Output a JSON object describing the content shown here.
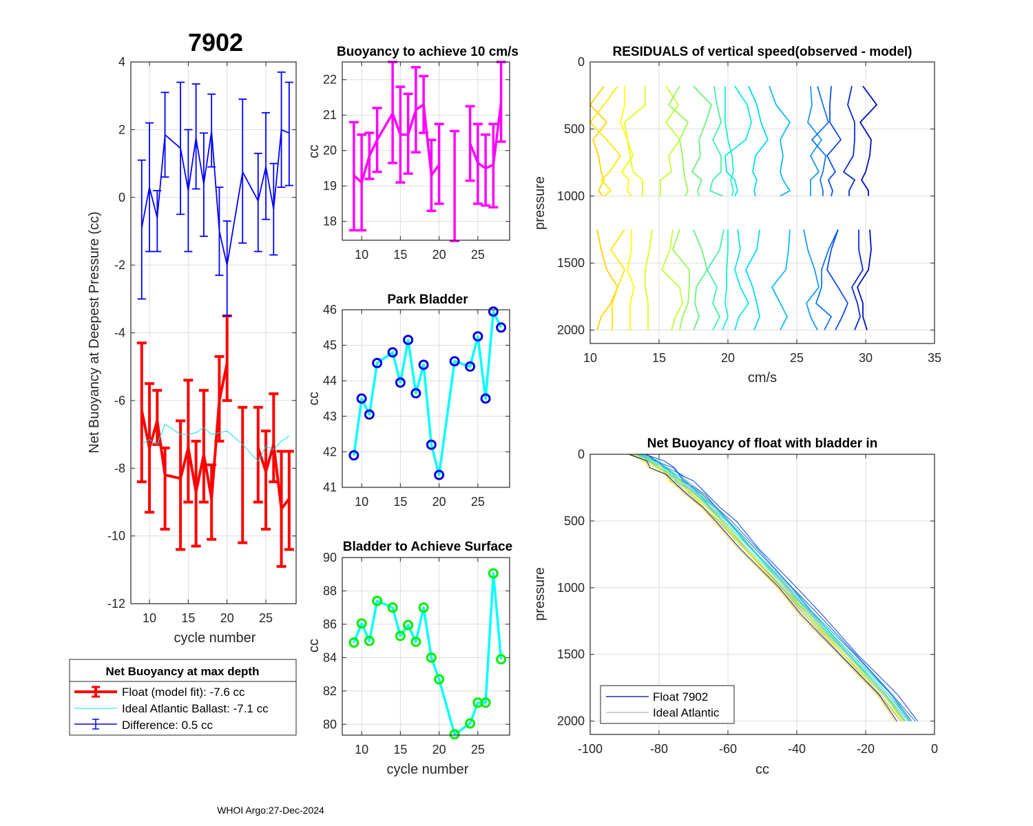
{
  "figure": {
    "float_title": "7902",
    "footer": "WHOI Argo:27-Dec-2024"
  },
  "chart_data": [
    {
      "id": "net_buoyancy_deepest",
      "type": "line",
      "title": "7902",
      "xlabel": "cycle number",
      "ylabel": "Net Buoyancy at Deepest Pressure (cc)",
      "xlim": [
        7.6,
        28.9
      ],
      "ylim": [
        -12,
        4
      ],
      "xticks": [
        10,
        15,
        20,
        25
      ],
      "yticks": [
        4,
        2,
        0,
        -2,
        -4,
        -6,
        -8,
        -10,
        -12
      ],
      "grid": true,
      "x": [
        9,
        10,
        11,
        12,
        14,
        15,
        16,
        17,
        18,
        19,
        20,
        22,
        24,
        25,
        26,
        27,
        28
      ],
      "series": [
        {
          "name": "Float (model fit)",
          "color": "#ff0000",
          "values": [
            -6.3,
            -7.4,
            -6.6,
            -8.2,
            -8.3,
            -7.4,
            -8.7,
            -7.6,
            -8.9,
            -6.0,
            -4.9,
            null,
            -7.4,
            -8.1,
            -7.3,
            -9.2,
            -8.9
          ],
          "err_low": [
            -8.4,
            -9.3,
            -7.3,
            -9.8,
            -10.4,
            -9.0,
            -10.3,
            -9.0,
            -10.1,
            -7.2,
            -6.0,
            -10.2,
            -9.0,
            -9.8,
            -8.4,
            -10.9,
            -10.4
          ],
          "err_high": [
            -4.3,
            -5.5,
            -5.7,
            -7.4,
            -6.6,
            -5.4,
            -7.2,
            -5.7,
            -7.9,
            -4.7,
            -3.5,
            -6.2,
            -6.2,
            -6.9,
            -5.8,
            -7.5,
            -7.5
          ]
        },
        {
          "name": "Ideal Atlantic Ballast",
          "color": "#00e5e5",
          "values": [
            -7.3,
            -7.15,
            -7.3,
            -6.7,
            -7.0,
            -7.0,
            -6.95,
            -6.8,
            -7.0,
            -6.95,
            -6.9,
            -7.3,
            -7.8,
            -7.35,
            -7.45,
            -7.2,
            -7.05
          ]
        },
        {
          "name": "Difference",
          "color": "#0000ff",
          "values": [
            -0.9,
            0.3,
            -0.6,
            1.85,
            1.45,
            0.2,
            1.75,
            0.4,
            1.95,
            -1.0,
            -2.0,
            0.75,
            -0.1,
            0.9,
            -0.35,
            2.0,
            1.9
          ],
          "err_low": [
            -3.0,
            -1.6,
            -1.6,
            0.6,
            -0.5,
            -1.6,
            0.25,
            -1.15,
            0.9,
            -2.3,
            -3.5,
            -1.35,
            -1.6,
            -0.65,
            -1.7,
            0.3,
            0.35
          ],
          "err_high": [
            1.1,
            2.2,
            0.2,
            3.1,
            3.4,
            2.0,
            3.35,
            1.9,
            3.05,
            0.3,
            -0.7,
            2.9,
            1.3,
            2.5,
            1.0,
            3.7,
            3.4
          ]
        }
      ],
      "legend": {
        "title": "Net Buoyancy at max depth",
        "placement": "below",
        "entries": [
          {
            "label": "Float (model fit):  -7.6 cc",
            "color": "#ff0000",
            "style": "errorbar-thick"
          },
          {
            "label": "Ideal Atlantic Ballast:  -7.1 cc",
            "color": "#00e5e5",
            "style": "line"
          },
          {
            "label": "Difference:   0.5 cc",
            "color": "#0000ff",
            "style": "errorbar"
          }
        ]
      }
    },
    {
      "id": "buoyancy_10cms",
      "type": "line",
      "title": "Buoyancy to achieve 10 cm/s",
      "xlabel": "",
      "ylabel": "cc",
      "xlim": [
        7.5,
        29.1
      ],
      "ylim": [
        17.47,
        22.5
      ],
      "xticks": [
        10,
        15,
        20,
        25
      ],
      "yticks": [
        18,
        19,
        20,
        21,
        22
      ],
      "grid": true,
      "x": [
        9,
        10,
        11,
        12,
        14,
        15,
        16,
        17,
        18,
        19,
        20,
        22,
        24,
        25,
        26,
        27,
        28
      ],
      "series": [
        {
          "name": "buoyancy",
          "color": "#ff00ff",
          "values": [
            19.3,
            19.1,
            19.85,
            20.3,
            21.05,
            20.45,
            20.45,
            21.15,
            21.3,
            19.3,
            19.6,
            null,
            20.2,
            19.65,
            19.5,
            19.6,
            21.35
          ],
          "err_low": [
            17.75,
            17.75,
            19.2,
            19.4,
            19.65,
            19.1,
            19.35,
            19.95,
            20.5,
            18.3,
            18.5,
            17.45,
            19.15,
            18.5,
            18.45,
            18.4,
            20.25
          ],
          "err_high": [
            20.8,
            20.45,
            20.5,
            21.2,
            22.5,
            21.8,
            21.6,
            22.35,
            22.1,
            20.3,
            20.75,
            20.55,
            21.25,
            20.75,
            20.45,
            20.75,
            22.5
          ]
        }
      ]
    },
    {
      "id": "park_bladder",
      "type": "line",
      "title": "Park Bladder",
      "xlabel": "",
      "ylabel": "cc",
      "xlim": [
        7.5,
        29.1
      ],
      "ylim": [
        41,
        46
      ],
      "xticks": [
        10,
        15,
        20,
        25
      ],
      "yticks": [
        41,
        42,
        43,
        44,
        45,
        46
      ],
      "grid": true,
      "x": [
        9,
        10,
        11,
        12,
        14,
        15,
        16,
        17,
        18,
        19,
        20,
        22,
        24,
        25,
        26,
        27,
        28
      ],
      "series": [
        {
          "name": "park bladder",
          "line_color": "#00ffff",
          "marker_color": "#0000e0",
          "values": [
            41.9,
            43.5,
            43.05,
            44.5,
            44.8,
            43.95,
            45.15,
            43.65,
            44.45,
            42.2,
            41.35,
            44.55,
            44.4,
            45.25,
            43.5,
            45.95,
            45.5
          ]
        }
      ]
    },
    {
      "id": "bladder_surface",
      "type": "line",
      "title": "Bladder to Achieve Surface",
      "xlabel": "cycle number",
      "ylabel": "cc",
      "xlim": [
        7.5,
        29.1
      ],
      "ylim": [
        79.35,
        90
      ],
      "xticks": [
        10,
        15,
        20,
        25
      ],
      "yticks": [
        80,
        82,
        84,
        86,
        88,
        90
      ],
      "grid": true,
      "x": [
        9,
        10,
        11,
        12,
        14,
        15,
        16,
        17,
        18,
        19,
        20,
        22,
        24,
        25,
        26,
        27,
        28
      ],
      "series": [
        {
          "name": "surface bladder",
          "line_color": "#00ffff",
          "marker_color": "#00ee00",
          "values": [
            84.9,
            86.05,
            85.0,
            87.4,
            87.0,
            85.3,
            85.95,
            84.95,
            87.0,
            84.0,
            82.7,
            79.4,
            80.05,
            81.3,
            81.3,
            89.05,
            83.9
          ]
        }
      ]
    },
    {
      "id": "residuals",
      "type": "line",
      "title": "RESIDUALS of vertical speed(observed - model)",
      "xlabel": "cm/s",
      "ylabel": "pressure",
      "xlim": [
        10,
        35
      ],
      "ylim": [
        0,
        2100
      ],
      "y_reversed": true,
      "xticks": [
        10,
        15,
        20,
        25,
        30,
        35
      ],
      "yticks": [
        0,
        500,
        1000,
        1500,
        2000
      ],
      "grid": true,
      "colormap": "parula-reversed",
      "profiles_upper": {
        "pressure": [
          180,
          320,
          450,
          580,
          700,
          820,
          880,
          960,
          1000
        ],
        "offsets": [
          10,
          11,
          12.5,
          14,
          15.5,
          16.5,
          17.5,
          19,
          19.8,
          20.5,
          21.5,
          23,
          26,
          26.5,
          27.5,
          29,
          29.8
        ],
        "shapes": [
          [
            1,
            0,
            1.2,
            0.2,
            0.6,
            0.8,
            1,
            0.6,
            0.9
          ],
          [
            1,
            0,
            -1,
            0.2,
            1.2,
            0.4,
            -0.2,
            0.5,
            0
          ],
          [
            0,
            0,
            -0.3,
            0.2,
            0.6,
            -0.2,
            0.3,
            0.2,
            0.5
          ],
          [
            0,
            0,
            -1.5,
            -1.3,
            -1.1,
            -0.9,
            -0.2,
            -0.2,
            -0.2
          ],
          [
            0,
            0.9,
            0,
            1,
            0.2,
            0.4,
            -0.4,
            -0.4,
            -0.4
          ],
          [
            0,
            -0.8,
            0.6,
            0,
            0.2,
            0.3,
            0.4,
            0.6,
            0.4
          ],
          [
            0,
            1.3,
            0.9,
            0.4,
            0.5,
            -0.1,
            0.6,
            0.3,
            0.4
          ],
          [
            0,
            0.2,
            0.5,
            -0.1,
            0.5,
            0.5,
            -0.1,
            -0.3,
            0.6
          ],
          [
            0,
            0,
            0,
            0.2,
            0.5,
            0.6,
            0.4,
            0.6,
            0.5
          ],
          [
            0,
            0.9,
            1.2,
            0.8,
            -0.7,
            -0.6,
            0,
            0.2,
            0
          ],
          [
            0,
            0.6,
            0.9,
            1.4,
            0.5,
            0.3,
            0.6,
            0.4,
            0.5
          ],
          [
            0,
            0.5,
            1.5,
            0.8,
            1,
            0.8,
            1,
            1.5,
            0.8
          ],
          [
            0,
            0.1,
            -0.2,
            0.8,
            0,
            0.6,
            0,
            0,
            0
          ],
          [
            0,
            0.4,
            0.8,
            -0.4,
            0.6,
            0.4,
            0.2,
            0.4,
            0.4
          ],
          [
            0,
            -0.1,
            -0.1,
            0.7,
            -0.3,
            0.3,
            -0.2,
            0.1,
            0
          ],
          [
            0,
            -0.3,
            0.2,
            0.2,
            0.1,
            -0.6,
            0.2,
            -0.2,
            -0.2
          ],
          [
            0,
            1,
            -0.2,
            0.6,
            0.5,
            0.2,
            -0.1,
            0.4,
            0.4
          ]
        ]
      },
      "profiles_lower": {
        "pressure": [
          1250,
          1400,
          1550,
          1680,
          1800,
          1900,
          2000
        ],
        "offsets": [
          10,
          11,
          12.5,
          14,
          15.5,
          16.5,
          17.5,
          19,
          19.8,
          20.5,
          21.5,
          23,
          26,
          26.5,
          27.5,
          29,
          29.8
        ],
        "shapes": [
          [
            0.5,
            0.8,
            1.2,
            2,
            1.5,
            0.8,
            0.5
          ],
          [
            1.5,
            0.5,
            1.5,
            1,
            0.6,
            0.6,
            0.6
          ],
          [
            0.5,
            0.5,
            0.2,
            0.7,
            0.4,
            0.4,
            0.4
          ],
          [
            0.5,
            0.3,
            0,
            0,
            0.2,
            0.2,
            0.2
          ],
          [
            0.5,
            0.3,
            -0.3,
            1,
            1.2,
            0.7,
            0.4
          ],
          [
            0,
            -0.5,
            0.7,
            0.7,
            0.6,
            0.2,
            0
          ],
          [
            0,
            0.6,
            1,
            0.2,
            0.1,
            0.4,
            0
          ],
          [
            0.7,
            0.4,
            -0.5,
            0.2,
            -0.1,
            0.4,
            -0.1
          ],
          [
            0.2,
            0.2,
            0.1,
            0.1,
            0,
            0.2,
            -0.2
          ],
          [
            0.2,
            0.4,
            0,
            0.4,
            1,
            0.3,
            0
          ],
          [
            0.8,
            0.6,
            -0.2,
            0.3,
            0.6,
            0.8,
            0.4
          ],
          [
            1.5,
            1.4,
            1.2,
            0.2,
            0.8,
            1.3,
            0.8
          ],
          [
            -0.5,
            -0.2,
            0.3,
            0.6,
            -0.3,
            0,
            0.5
          ],
          [
            1.5,
            0.8,
            0.3,
            0.3,
            -0.1,
            1,
            0.5
          ],
          [
            0.5,
            0,
            -0.3,
            0.5,
            1.2,
            0.8,
            0.3
          ],
          [
            0.5,
            0.5,
            0.8,
            0,
            0.4,
            0.6,
            0.2
          ],
          [
            0.5,
            0.6,
            0.4,
            -0.4,
            0,
            0,
            0.3
          ]
        ]
      }
    },
    {
      "id": "net_buoyancy_profile",
      "type": "line",
      "title": "Net Buoyancy of float with bladder in",
      "xlabel": "cc",
      "ylabel": "pressure",
      "xlim": [
        -100,
        0
      ],
      "ylim": [
        0,
        2100
      ],
      "y_reversed": true,
      "xticks": [
        -100,
        -80,
        -60,
        -40,
        -20,
        0
      ],
      "yticks": [
        0,
        500,
        1000,
        1500,
        2000
      ],
      "grid": true,
      "mean_profile": {
        "pressure": [
          0,
          50,
          100,
          150,
          200,
          300,
          400,
          500,
          700,
          1000,
          1200,
          1500,
          1800,
          2000
        ],
        "cc": [
          -86,
          -82,
          -79,
          -76,
          -74,
          -69,
          -65,
          -61,
          -54,
          -43,
          -36,
          -25,
          -14,
          -8
        ]
      },
      "spread": [
        -3,
        -2,
        -1.5,
        -1,
        -0.5,
        0,
        0.5,
        1,
        1.5,
        2,
        3,
        -2.5
      ],
      "legend": {
        "placement": "bottom-left",
        "entries": [
          {
            "label": "Float 7902",
            "color": "#0000a0"
          },
          {
            "label": "Ideal Atlantic",
            "color": "#b0b0b0"
          }
        ]
      }
    }
  ]
}
